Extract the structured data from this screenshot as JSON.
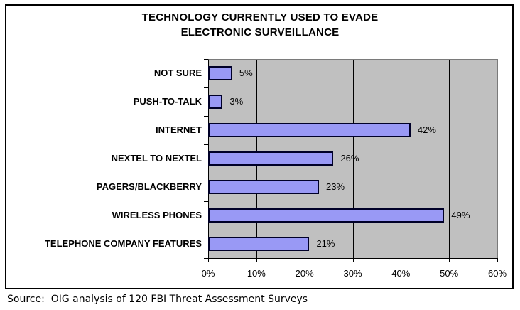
{
  "header": {
    "title_lines": [
      "TECHNOLOGY CURRENTLY USED TO EVADE",
      "ELECTRONIC SURVEILLANCE"
    ]
  },
  "footer": {
    "source_note": "Source:  OIG analysis of 120 FBI Threat Assessment Surveys"
  },
  "chart_data": {
    "type": "bar",
    "orientation": "horizontal",
    "title": "TECHNOLOGY CURRENTLY USED TO EVADE ELECTRONIC SURVEILLANCE",
    "categories": [
      "NOT SURE",
      "PUSH-TO-TALK",
      "INTERNET",
      "NEXTEL TO NEXTEL",
      "PAGERS/BLACKBERRY",
      "WIRELESS PHONES",
      "TELEPHONE COMPANY FEATURES"
    ],
    "values": [
      5,
      3,
      42,
      26,
      23,
      49,
      21
    ],
    "value_labels": [
      "5%",
      "3%",
      "42%",
      "26%",
      "23%",
      "49%",
      "21%"
    ],
    "xlabel": "",
    "ylabel": "",
    "xlim": [
      0,
      60
    ],
    "x_tick_values": [
      0,
      10,
      20,
      30,
      40,
      50,
      60
    ],
    "x_tick_labels": [
      "0%",
      "10%",
      "20%",
      "30%",
      "40%",
      "50%",
      "60%"
    ],
    "grid": true,
    "legend": false,
    "colors": {
      "bar_fill": "#9999f5",
      "bar_border": "#000028",
      "plot_background": "#c0c0c0",
      "gridline": "#000000",
      "frame_border": "#000000"
    }
  }
}
